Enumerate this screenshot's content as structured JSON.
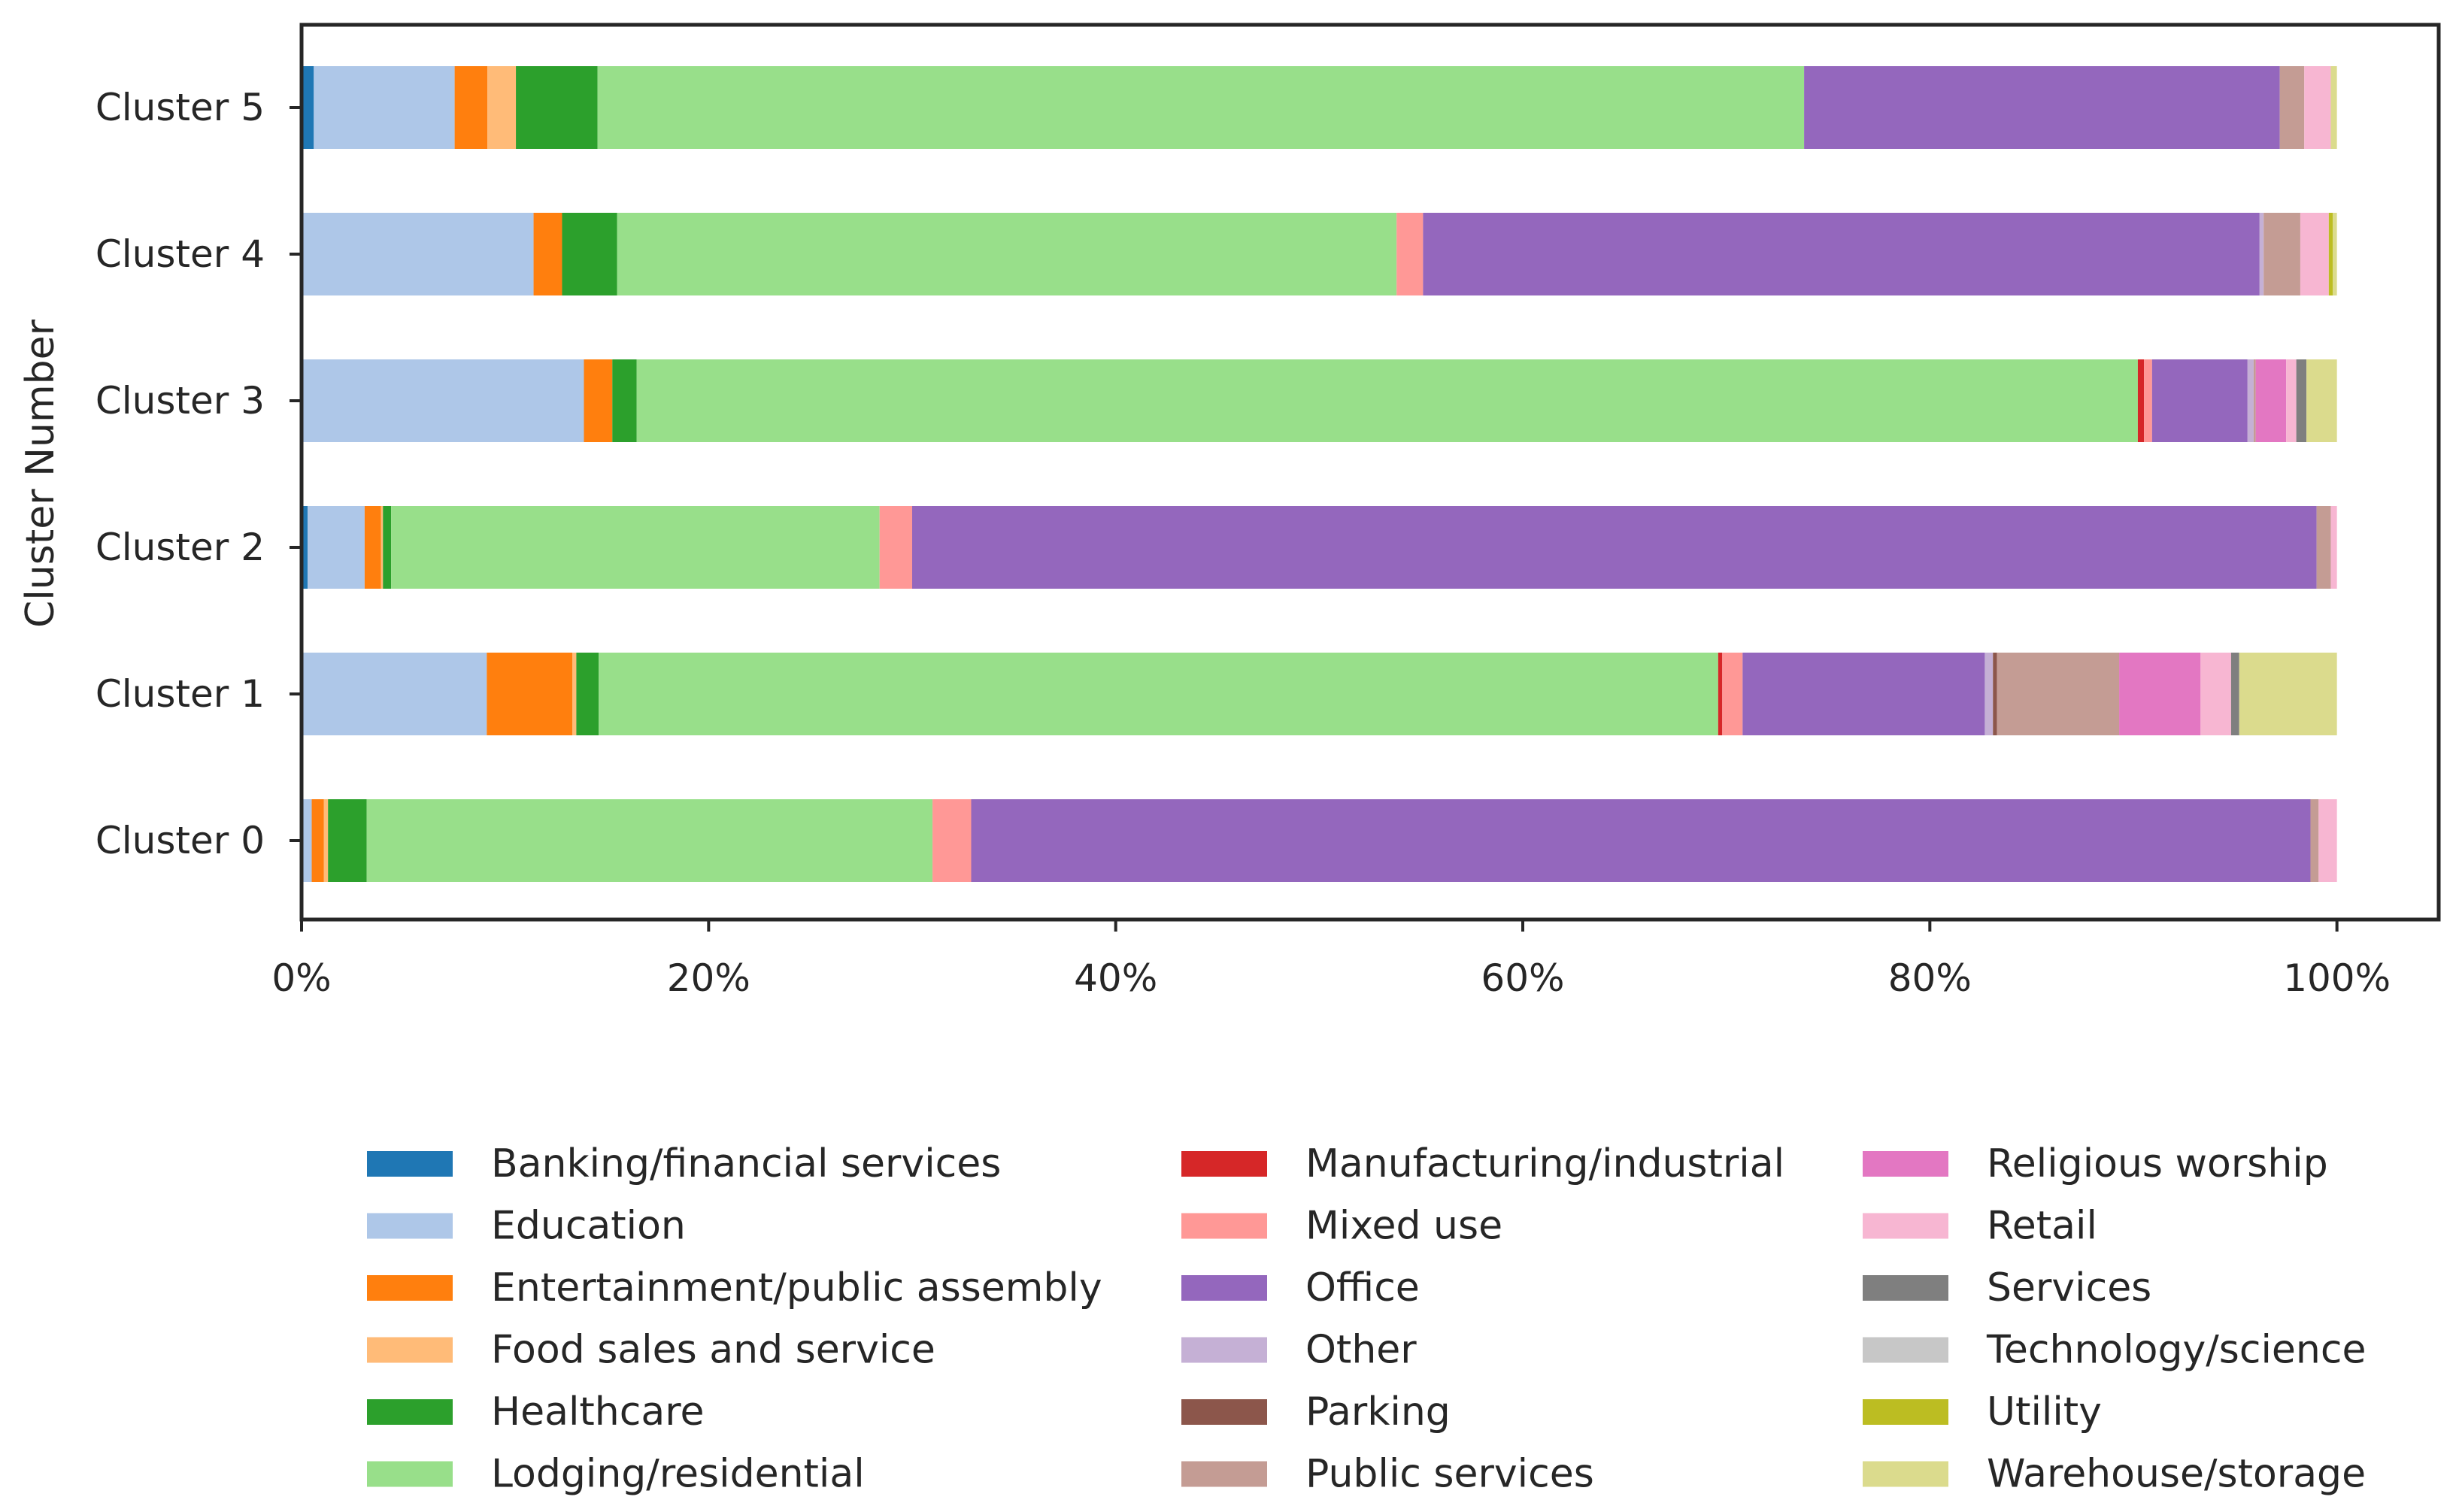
{
  "chart_data": {
    "type": "bar",
    "orientation": "horizontal",
    "stacked": true,
    "normalized": true,
    "title": "",
    "xlabel": "",
    "ylabel": "Cluster Number",
    "xlim": [
      0,
      105
    ],
    "x_ticks": [
      "0%",
      "20%",
      "40%",
      "60%",
      "80%",
      "100%"
    ],
    "x_tick_values": [
      0,
      20,
      40,
      60,
      80,
      100
    ],
    "grid": false,
    "legend_position": "bottom",
    "categories": [
      "Cluster 0",
      "Cluster 1",
      "Cluster 2",
      "Cluster 3",
      "Cluster 4",
      "Cluster 5"
    ],
    "series": [
      {
        "name": "Banking/financial services",
        "color": "#1f77b4",
        "values": [
          0.0,
          0.0,
          0.3,
          0.0,
          0.0,
          0.6
        ]
      },
      {
        "name": "Education",
        "color": "#aec7e8",
        "values": [
          0.5,
          9.1,
          2.8,
          13.9,
          11.4,
          6.9
        ]
      },
      {
        "name": "Entertainment/public assembly",
        "color": "#ff7f0e",
        "values": [
          0.6,
          4.2,
          0.8,
          1.4,
          1.4,
          1.6
        ]
      },
      {
        "name": "Food sales and service",
        "color": "#ffbb78",
        "values": [
          0.2,
          0.2,
          0.1,
          0.0,
          0.0,
          1.4
        ]
      },
      {
        "name": "Healthcare",
        "color": "#2ca02c",
        "values": [
          1.9,
          1.1,
          0.4,
          1.2,
          2.7,
          4.0
        ]
      },
      {
        "name": "Lodging/residential",
        "color": "#98df8a",
        "values": [
          27.8,
          55.0,
          24.0,
          73.9,
          38.3,
          59.1
        ]
      },
      {
        "name": "Manufacturing/industrial",
        "color": "#d62728",
        "values": [
          0.0,
          0.2,
          0.0,
          0.3,
          0.0,
          0.0
        ]
      },
      {
        "name": "Mixed use",
        "color": "#ff9896",
        "values": [
          1.9,
          1.0,
          1.6,
          0.4,
          1.3,
          0.0
        ]
      },
      {
        "name": "Office",
        "color": "#9467bd",
        "values": [
          65.8,
          11.9,
          69.0,
          4.7,
          41.1,
          23.3
        ]
      },
      {
        "name": "Other",
        "color": "#c5b0d5",
        "values": [
          0.0,
          0.4,
          0.0,
          0.3,
          0.2,
          0.0
        ]
      },
      {
        "name": "Parking",
        "color": "#8c564b",
        "values": [
          0.0,
          0.2,
          0.0,
          0.0,
          0.0,
          0.0
        ]
      },
      {
        "name": "Public services",
        "color": "#c49c94",
        "values": [
          0.4,
          6.0,
          0.7,
          0.1,
          1.8,
          1.2
        ]
      },
      {
        "name": "Religious worship",
        "color": "#e377c2",
        "values": [
          0.0,
          4.0,
          0.0,
          1.5,
          0.0,
          0.0
        ]
      },
      {
        "name": "Retail",
        "color": "#f7b6d2",
        "values": [
          0.9,
          1.5,
          0.3,
          0.5,
          1.4,
          1.3
        ]
      },
      {
        "name": "Services",
        "color": "#7f7f7f",
        "values": [
          0.0,
          0.4,
          0.0,
          0.5,
          0.0,
          0.0
        ]
      },
      {
        "name": "Technology/science",
        "color": "#c7c7c7",
        "values": [
          0.0,
          0.0,
          0.0,
          0.0,
          0.0,
          0.0
        ]
      },
      {
        "name": "Utility",
        "color": "#bcbd22",
        "values": [
          0.0,
          0.0,
          0.0,
          0.0,
          0.2,
          0.0
        ]
      },
      {
        "name": "Warehouse/storage",
        "color": "#dbdb8d",
        "values": [
          0.0,
          4.8,
          0.0,
          1.5,
          0.2,
          0.3
        ]
      }
    ]
  }
}
